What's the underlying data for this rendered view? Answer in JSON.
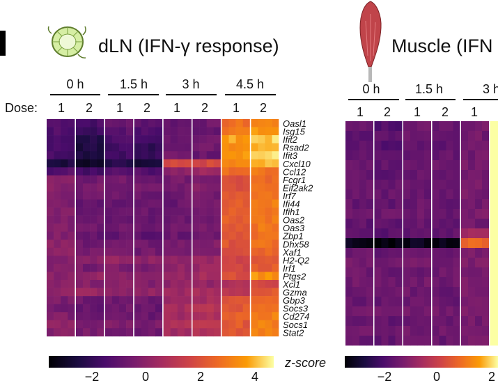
{
  "panel_label": "",
  "chart_data": [
    {
      "type": "heatmap",
      "title": "dLN (IFN-γ response)",
      "dose_label": "Dose:",
      "timepoints": [
        "0 h",
        "1.5 h",
        "3 h",
        "4.5 h"
      ],
      "doses": [
        "1",
        "2"
      ],
      "genes": [
        "Oasl1",
        "Isg15",
        "Ifit2",
        "Rsad2",
        "Ifit3",
        "Cxcl10",
        "Ccl12",
        "Fcgr1",
        "Eif2ak2",
        "Irf7",
        "Ifi44",
        "Ifih1",
        "Oas2",
        "Oas3",
        "Zbp1",
        "Dhx58",
        "Xaf1",
        "H2-Q2",
        "Irf1",
        "Ptgs2",
        "Xcl1",
        "Gzma",
        "Gbp3",
        "Socs3",
        "Cd274",
        "Socs1",
        "Stat2"
      ],
      "colorbar": {
        "label": "z-score",
        "ticks": [
          "−2",
          "0",
          "2",
          "4"
        ],
        "min": -3.3,
        "max": 5.0
      },
      "group_means": [
        [
          -0.9,
          -1.2,
          -0.5,
          -0.7,
          -0.6,
          -0.4,
          3.0,
          3.5
        ],
        [
          -1.1,
          -1.5,
          -0.8,
          -1.1,
          -0.6,
          -0.5,
          3.3,
          3.8
        ],
        [
          -1.3,
          -2.0,
          -1.2,
          -1.5,
          -0.4,
          -0.3,
          4.0,
          4.5
        ],
        [
          -1.3,
          -2.2,
          -1.3,
          -1.8,
          -0.3,
          -0.3,
          3.8,
          4.4
        ],
        [
          -1.2,
          -2.1,
          -1.3,
          -1.7,
          -0.2,
          -0.5,
          4.0,
          4.6
        ],
        [
          -2.2,
          -2.8,
          -2.1,
          -2.5,
          1.9,
          2.0,
          3.5,
          4.2
        ],
        [
          -1.0,
          -1.3,
          -0.8,
          -1.0,
          0.3,
          0.6,
          3.0,
          3.2
        ],
        [
          0.3,
          -0.3,
          -0.3,
          -0.4,
          -0.2,
          -0.1,
          2.2,
          2.8
        ],
        [
          0.2,
          -0.2,
          -0.3,
          -0.3,
          -0.2,
          0.0,
          2.3,
          3.0
        ],
        [
          0.1,
          -0.4,
          -0.4,
          -0.5,
          -0.4,
          -0.2,
          2.6,
          3.2
        ],
        [
          0.0,
          -0.5,
          -0.5,
          -0.6,
          -0.5,
          -0.3,
          2.7,
          3.3
        ],
        [
          0.1,
          -0.4,
          -0.4,
          -0.5,
          -0.3,
          -0.1,
          2.6,
          3.1
        ],
        [
          0.0,
          -0.5,
          -0.5,
          -0.6,
          -0.4,
          -0.2,
          2.7,
          3.3
        ],
        [
          0.1,
          -0.4,
          -0.4,
          -0.5,
          -0.3,
          -0.1,
          2.6,
          3.2
        ],
        [
          0.0,
          -0.6,
          -0.6,
          -0.7,
          -0.5,
          -0.3,
          2.5,
          3.1
        ],
        [
          0.2,
          -0.3,
          -0.3,
          -0.4,
          -0.2,
          0.0,
          2.4,
          3.0
        ],
        [
          0.3,
          -0.2,
          -0.2,
          -0.3,
          -0.1,
          0.1,
          2.3,
          2.9
        ],
        [
          0.2,
          0.3,
          0.4,
          0.3,
          0.5,
          0.6,
          1.8,
          2.3
        ],
        [
          0.0,
          -0.2,
          -0.1,
          -0.2,
          0.4,
          0.6,
          2.0,
          2.6
        ],
        [
          0.3,
          0.4,
          0.2,
          0.4,
          0.6,
          0.8,
          2.2,
          3.8
        ],
        [
          0.3,
          0.1,
          0.2,
          0.1,
          0.3,
          0.4,
          1.2,
          2.0
        ],
        [
          0.4,
          0.6,
          0.2,
          0.4,
          0.7,
          0.8,
          1.4,
          2.4
        ],
        [
          -0.1,
          -0.4,
          -0.3,
          -0.4,
          0.6,
          0.9,
          2.4,
          3.0
        ],
        [
          -0.2,
          -0.6,
          -0.4,
          -0.6,
          0.9,
          1.2,
          2.5,
          3.2
        ],
        [
          0.0,
          -0.4,
          -0.3,
          -0.5,
          0.8,
          1.1,
          2.6,
          3.4
        ],
        [
          0.3,
          -0.1,
          0.0,
          -0.1,
          1.0,
          1.3,
          2.5,
          3.4
        ],
        [
          0.2,
          -0.2,
          -0.2,
          -0.3,
          0.8,
          1.0,
          2.4,
          3.3
        ]
      ]
    },
    {
      "type": "heatmap",
      "title": "Muscle (IFN",
      "timepoints": [
        "0 h",
        "1.5 h",
        "3 h"
      ],
      "doses": [
        "1",
        "2"
      ],
      "visible_dose_labels": [
        "1",
        "2",
        "1",
        "2",
        "1"
      ],
      "colorbar": {
        "label": "",
        "ticks": [
          "−2",
          "0",
          "2"
        ],
        "min": -3.3,
        "max": 5.0
      },
      "group_means": [
        [
          -0.6,
          -1.0,
          -0.4,
          -0.5,
          -0.3
        ],
        [
          -0.7,
          -0.8,
          -0.5,
          -0.6,
          -0.3
        ],
        [
          -0.8,
          -0.9,
          -0.6,
          -0.7,
          -0.4
        ],
        [
          -0.7,
          -0.8,
          -0.6,
          -0.6,
          -0.3
        ],
        [
          -0.5,
          -0.6,
          -0.4,
          -0.5,
          -0.2
        ],
        [
          -0.6,
          -0.7,
          -0.5,
          -0.5,
          -0.2
        ],
        [
          -0.4,
          -0.5,
          -0.4,
          -0.4,
          -0.1
        ],
        [
          -0.5,
          -0.6,
          -0.5,
          -0.6,
          -0.2
        ],
        [
          -0.6,
          -0.7,
          -0.5,
          -0.6,
          -0.3
        ],
        [
          -0.4,
          -0.5,
          -0.4,
          -0.5,
          -0.1
        ],
        [
          -0.7,
          -0.8,
          -0.6,
          -0.7,
          -0.4
        ],
        [
          -0.6,
          -0.8,
          -0.6,
          -0.6,
          0.6
        ],
        [
          -3.0,
          -3.1,
          -2.9,
          -3.0,
          2.9
        ],
        [
          -0.5,
          -0.6,
          -0.5,
          -0.5,
          -0.2
        ],
        [
          -0.3,
          -0.4,
          -0.3,
          -0.3,
          0.0
        ],
        [
          -0.4,
          -0.5,
          -0.4,
          -0.4,
          -0.1
        ],
        [
          -0.3,
          -0.4,
          -0.3,
          -0.4,
          0.0
        ],
        [
          -0.4,
          -0.5,
          -0.4,
          -0.5,
          -0.1
        ],
        [
          -0.5,
          -0.6,
          -0.5,
          -0.5,
          -0.2
        ],
        [
          -0.3,
          -0.4,
          -0.3,
          -0.3,
          0.0
        ],
        [
          -0.6,
          -0.7,
          -0.5,
          -0.6,
          -0.3
        ],
        [
          -0.4,
          -0.5,
          -0.4,
          -0.4,
          -0.1
        ],
        [
          -0.5,
          -0.6,
          -0.5,
          -0.6,
          -0.2
        ]
      ]
    }
  ],
  "colors": {
    "divider": "#ffffff",
    "lymph_node_fill": "#d6eea4",
    "lymph_node_stroke": "#5f7d2e",
    "muscle_fill": "#c0444a",
    "tendon_fill": "#b8b8b8"
  },
  "icons": {
    "dln": "lymph-node-icon",
    "muscle": "muscle-icon"
  }
}
